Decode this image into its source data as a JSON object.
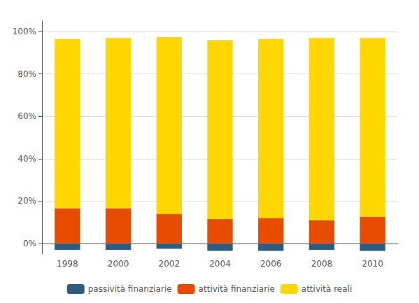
{
  "chart_data": {
    "type": "bar",
    "categories": [
      "1998",
      "2000",
      "2002",
      "2004",
      "2006",
      "2008",
      "2010"
    ],
    "series": [
      {
        "name": "passività finanziarie",
        "color": "#2e5c7e",
        "values": [
          -3.0,
          -3.0,
          -2.5,
          -3.5,
          -3.5,
          -3.0,
          -3.5
        ]
      },
      {
        "name": "attività finanziarie",
        "color": "#e84c00",
        "values": [
          16.5,
          16.5,
          14.0,
          11.5,
          12.0,
          11.0,
          12.5
        ]
      },
      {
        "name": "attività reali",
        "color": "#ffd700",
        "values": [
          80.0,
          80.5,
          83.5,
          84.5,
          84.5,
          86.0,
          84.5
        ]
      }
    ],
    "stacked": true,
    "ylim": [
      -5,
      105
    ],
    "yticks": [
      {
        "value": 0,
        "label": "0%"
      },
      {
        "value": 20,
        "label": "20%"
      },
      {
        "value": 40,
        "label": "40%"
      },
      {
        "value": 60,
        "label": "60%"
      },
      {
        "value": 80,
        "label": "80%"
      },
      {
        "value": 100,
        "label": "100%"
      }
    ],
    "grid": true,
    "legend": "bottom"
  }
}
